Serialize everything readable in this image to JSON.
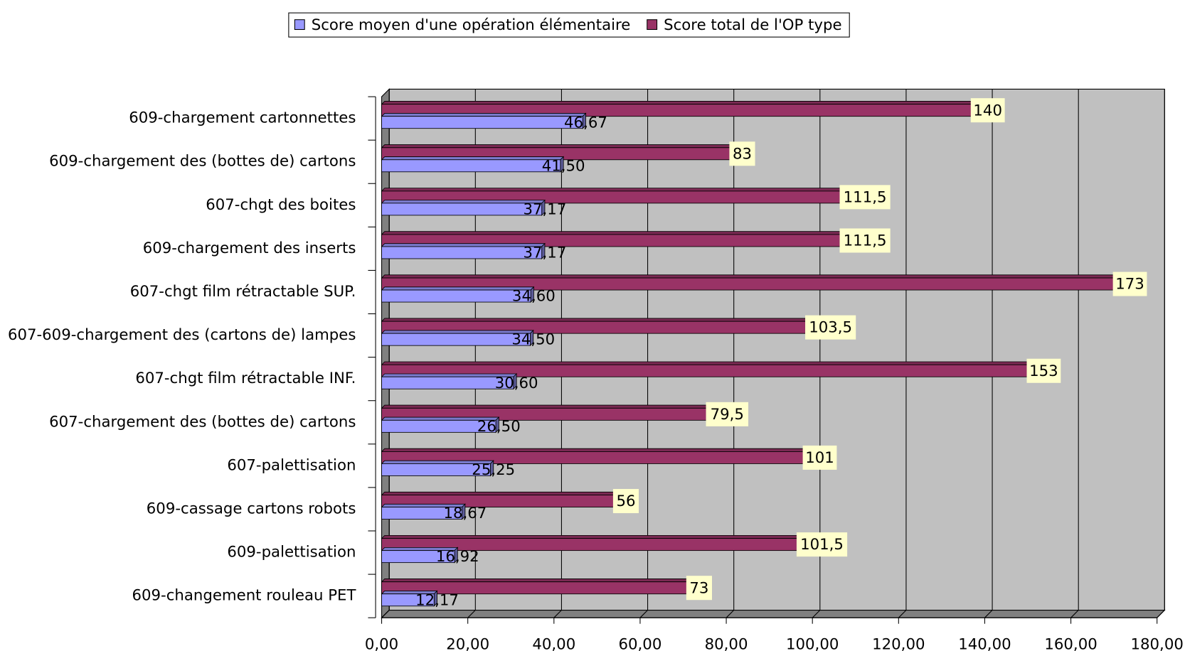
{
  "chart_data": {
    "type": "bar",
    "orientation": "horizontal",
    "categories": [
      "609-chargement cartonnettes",
      "609-chargement des (bottes de) cartons",
      "607-chgt des boites",
      "609-chargement des inserts",
      "607-chgt film rétractable SUP.",
      "607-609-chargement des (cartons de) lampes",
      "607-chgt film rétractable INF.",
      "607-chargement des (bottes de) cartons",
      "607-palettisation",
      "609-cassage cartons robots",
      "609-palettisation",
      "609-changement rouleau PET"
    ],
    "series": [
      {
        "name": "Score moyen d'une opération élémentaire",
        "color": "#9999ff",
        "values": [
          46.67,
          41.5,
          37.17,
          37.17,
          34.6,
          34.5,
          30.6,
          26.5,
          25.25,
          18.67,
          16.92,
          12.17
        ],
        "value_labels": [
          "46,67",
          "41,50",
          "37,17",
          "37,17",
          "34,60",
          "34,50",
          "30,60",
          "26,50",
          "25,25",
          "18,67",
          "16,92",
          "12,17"
        ]
      },
      {
        "name": "Score total de l'OP type",
        "color": "#993366",
        "values": [
          140,
          83,
          111.5,
          111.5,
          173,
          103.5,
          153,
          79.5,
          101,
          56,
          101.5,
          73
        ],
        "value_labels": [
          "140",
          "83",
          "111,5",
          "111,5",
          "173",
          "103,5",
          "153",
          "79,5",
          "101",
          "56",
          "101,5",
          "73"
        ]
      }
    ],
    "xlim": [
      0,
      180
    ],
    "xticks": [
      {
        "value": 0,
        "label": "0,00"
      },
      {
        "value": 20,
        "label": "20,00"
      },
      {
        "value": 40,
        "label": "40,00"
      },
      {
        "value": 60,
        "label": "60,00"
      },
      {
        "value": 80,
        "label": "80,00"
      },
      {
        "value": 100,
        "label": "100,00"
      },
      {
        "value": 120,
        "label": "120,00"
      },
      {
        "value": 140,
        "label": "140,00"
      },
      {
        "value": 160,
        "label": "160,00"
      },
      {
        "value": 180,
        "label": "180,00"
      }
    ],
    "grid": true,
    "legend": "top"
  }
}
